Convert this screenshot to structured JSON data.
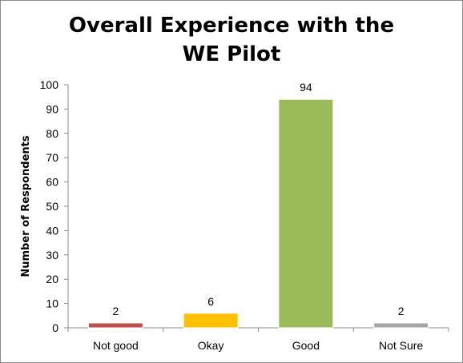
{
  "chart_data": {
    "type": "bar",
    "title_line1": "Overall Experience with the",
    "title_line2": "WE Pilot",
    "xlabel": "",
    "ylabel": "Number of Respondents",
    "categories": [
      "Not good",
      "Okay",
      "Good",
      "Not Sure"
    ],
    "values": [
      2,
      6,
      94,
      2
    ],
    "colors": [
      "#c0504d",
      "#ffc000",
      "#9bbb59",
      "#a6a6a6"
    ],
    "ylim": [
      0,
      100
    ],
    "yticks": [
      0,
      10,
      20,
      30,
      40,
      50,
      60,
      70,
      80,
      90,
      100
    ],
    "grid": false,
    "legend": "none"
  }
}
